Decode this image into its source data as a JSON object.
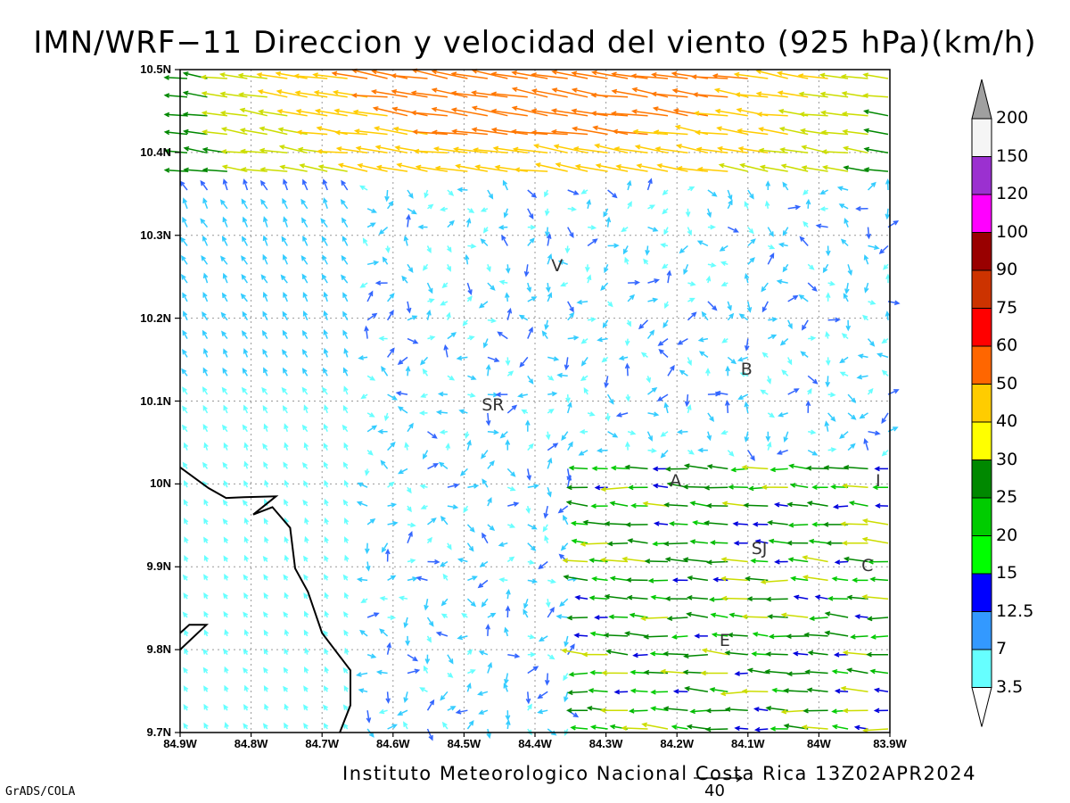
{
  "title": "IMN/WRF−11 Direccion y velocidad del viento (925 hPa)(km/h)",
  "footer": "Instituto Meteorologico Nacional Costa Rica 13Z02APR2024",
  "software": "GrADS/COLA",
  "reference_vector": {
    "label": "40",
    "value": 40,
    "units": "km/h"
  },
  "map": {
    "lon_min": -84.9,
    "lon_max": -83.9,
    "lat_min": 9.7,
    "lat_max": 10.5,
    "lat_ticks": [
      {
        "value": 10.5,
        "label": "10.5N"
      },
      {
        "value": 10.4,
        "label": "10.4N"
      },
      {
        "value": 10.3,
        "label": "10.3N"
      },
      {
        "value": 10.2,
        "label": "10.2N"
      },
      {
        "value": 10.1,
        "label": "10.1N"
      },
      {
        "value": 10.0,
        "label": "10N"
      },
      {
        "value": 9.9,
        "label": "9.9N"
      },
      {
        "value": 9.8,
        "label": "9.8N"
      },
      {
        "value": 9.7,
        "label": "9.7N"
      }
    ],
    "lon_ticks": [
      {
        "value": -84.9,
        "label": "84.9W"
      },
      {
        "value": -84.8,
        "label": "84.8W"
      },
      {
        "value": -84.7,
        "label": "84.7W"
      },
      {
        "value": -84.6,
        "label": "84.6W"
      },
      {
        "value": -84.5,
        "label": "84.5W"
      },
      {
        "value": -84.4,
        "label": "84.4W"
      },
      {
        "value": -84.3,
        "label": "84.3W"
      },
      {
        "value": -84.2,
        "label": "84.2W"
      },
      {
        "value": -84.1,
        "label": "84.1W"
      },
      {
        "value": -84.0,
        "label": "84W"
      },
      {
        "value": -83.9,
        "label": "83.9W"
      }
    ],
    "cities": [
      {
        "label": "V",
        "lon": -84.367,
        "lat": 10.262
      },
      {
        "label": "B",
        "lon": -84.1,
        "lat": 10.137
      },
      {
        "label": "SR",
        "lon": -84.465,
        "lat": 10.094
      },
      {
        "label": "A",
        "lon": -84.2,
        "lat": 10.003
      },
      {
        "label": "I",
        "lon": -83.91,
        "lat": 10.003
      },
      {
        "label": "SJ",
        "lon": -84.085,
        "lat": 9.921
      },
      {
        "label": "C",
        "lon": -83.93,
        "lat": 9.9
      },
      {
        "label": "E",
        "lon": -84.13,
        "lat": 9.81
      }
    ],
    "coastline": [
      [
        -84.9,
        10.02
      ],
      [
        -84.86,
        9.995
      ],
      [
        -84.835,
        9.983
      ],
      [
        -84.81,
        9.984
      ],
      [
        -84.765,
        9.985
      ],
      [
        -84.797,
        9.963
      ],
      [
        -84.77,
        9.972
      ],
      [
        -84.745,
        9.947
      ],
      [
        -84.738,
        9.898
      ],
      [
        -84.72,
        9.87
      ],
      [
        -84.7,
        9.82
      ],
      [
        -84.66,
        9.775
      ],
      [
        -84.66,
        9.733
      ],
      [
        -84.675,
        9.7
      ]
    ],
    "coast_fragment": [
      [
        -84.9,
        9.82
      ],
      [
        -84.887,
        9.83
      ],
      [
        -84.863,
        9.83
      ],
      [
        -84.9,
        9.8
      ]
    ]
  },
  "colorbar": {
    "levels": [
      {
        "label": "200",
        "color": "#a0a0a0"
      },
      {
        "label": "150",
        "color": "#f5f5f5"
      },
      {
        "label": "120",
        "color": "#9b30d0"
      },
      {
        "label": "100",
        "color": "#ff00ff"
      },
      {
        "label": "90",
        "color": "#990000"
      },
      {
        "label": "75",
        "color": "#cc3300"
      },
      {
        "label": "60",
        "color": "#ff0000"
      },
      {
        "label": "50",
        "color": "#ff6600"
      },
      {
        "label": "40",
        "color": "#ffcc00"
      },
      {
        "label": "30",
        "color": "#ffff00"
      },
      {
        "label": "25",
        "color": "#008800"
      },
      {
        "label": "20",
        "color": "#00cc00"
      },
      {
        "label": "15",
        "color": "#00ff00"
      },
      {
        "label": "12.5",
        "color": "#0000ff"
      },
      {
        "label": "7",
        "color": "#3399ff"
      },
      {
        "label": "3.5",
        "color": "#66ffff"
      },
      {
        "label": "",
        "color": "#ffffff"
      }
    ]
  }
}
